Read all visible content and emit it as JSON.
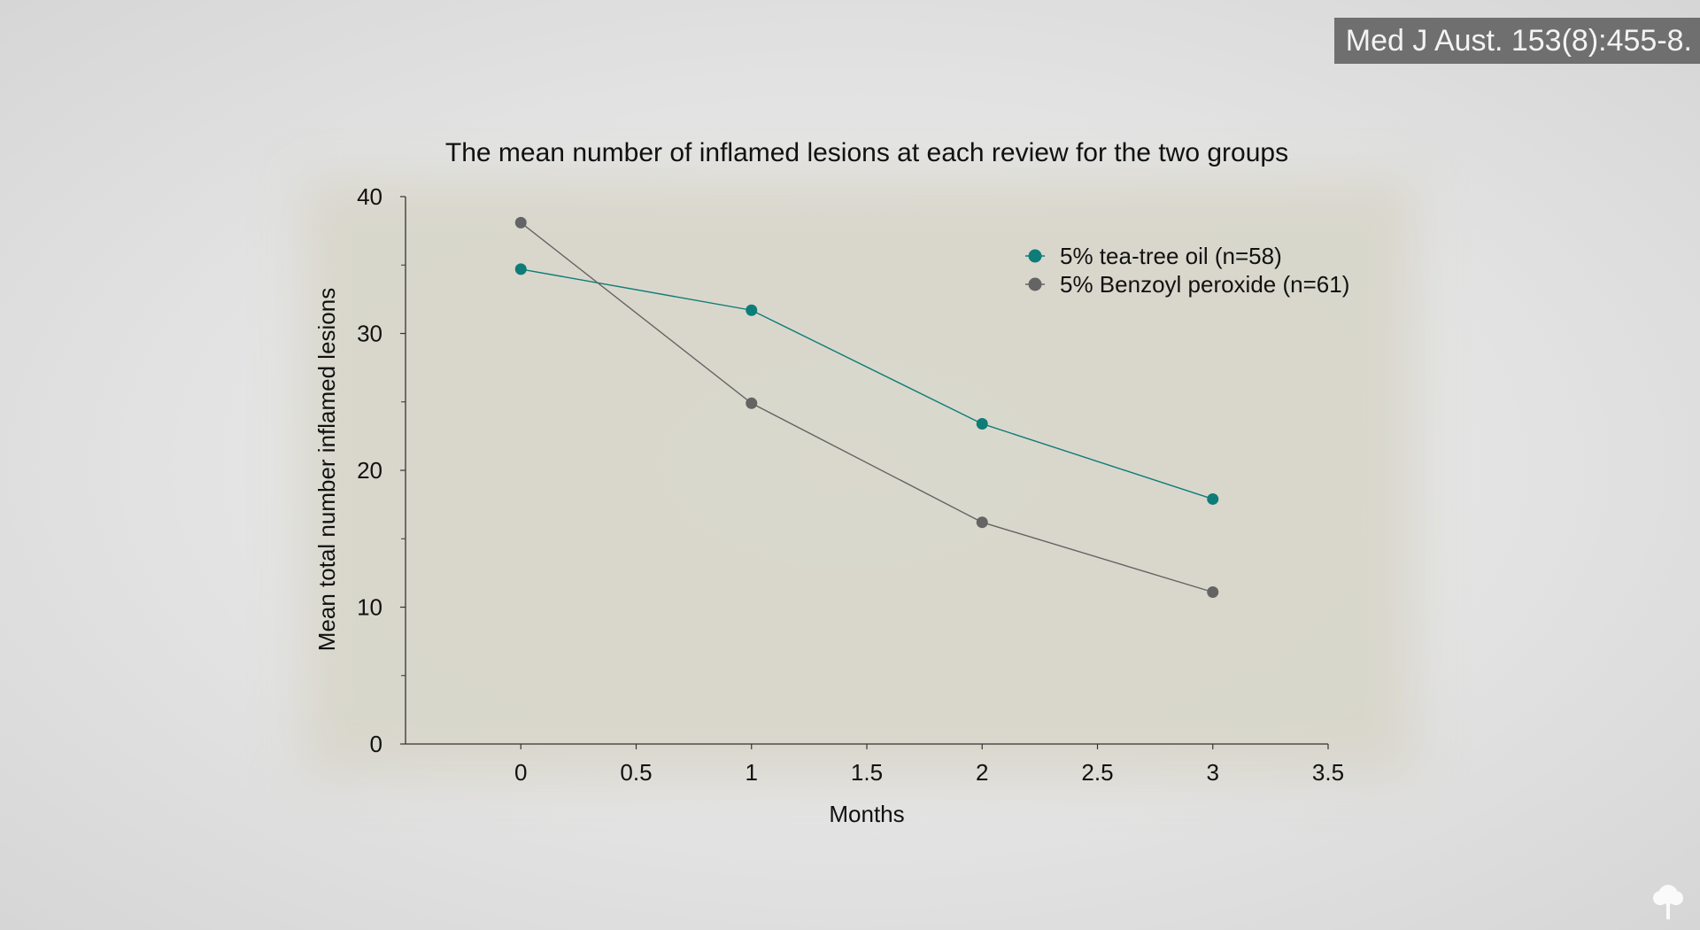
{
  "citation": "Med J Aust. 153(8):455-8.",
  "chart_data": {
    "type": "line",
    "title": "The mean number of inflamed lesions at each review for the two groups",
    "xlabel": "Months",
    "ylabel": "Mean total number inflamed lesions",
    "xlim": [
      -0.5,
      3.5
    ],
    "ylim": [
      0,
      40
    ],
    "x_ticks": [
      "0",
      "0.5",
      "1",
      "1.5",
      "2",
      "2.5",
      "3",
      "3.5"
    ],
    "y_ticks": [
      "0",
      "10",
      "20",
      "30",
      "40"
    ],
    "x": [
      0,
      1,
      2,
      3
    ],
    "series": [
      {
        "name": "5% tea-tree oil (n=58)",
        "values": [
          34.7,
          31.7,
          23.4,
          17.9
        ],
        "color": "#0e7c78"
      },
      {
        "name": "5% Benzoyl peroxide (n=61)",
        "values": [
          38.1,
          24.9,
          16.2,
          11.1
        ],
        "color": "#646464"
      }
    ],
    "legend_position": "top-right",
    "grid": false
  },
  "icons": {
    "logo": "tree-icon"
  }
}
